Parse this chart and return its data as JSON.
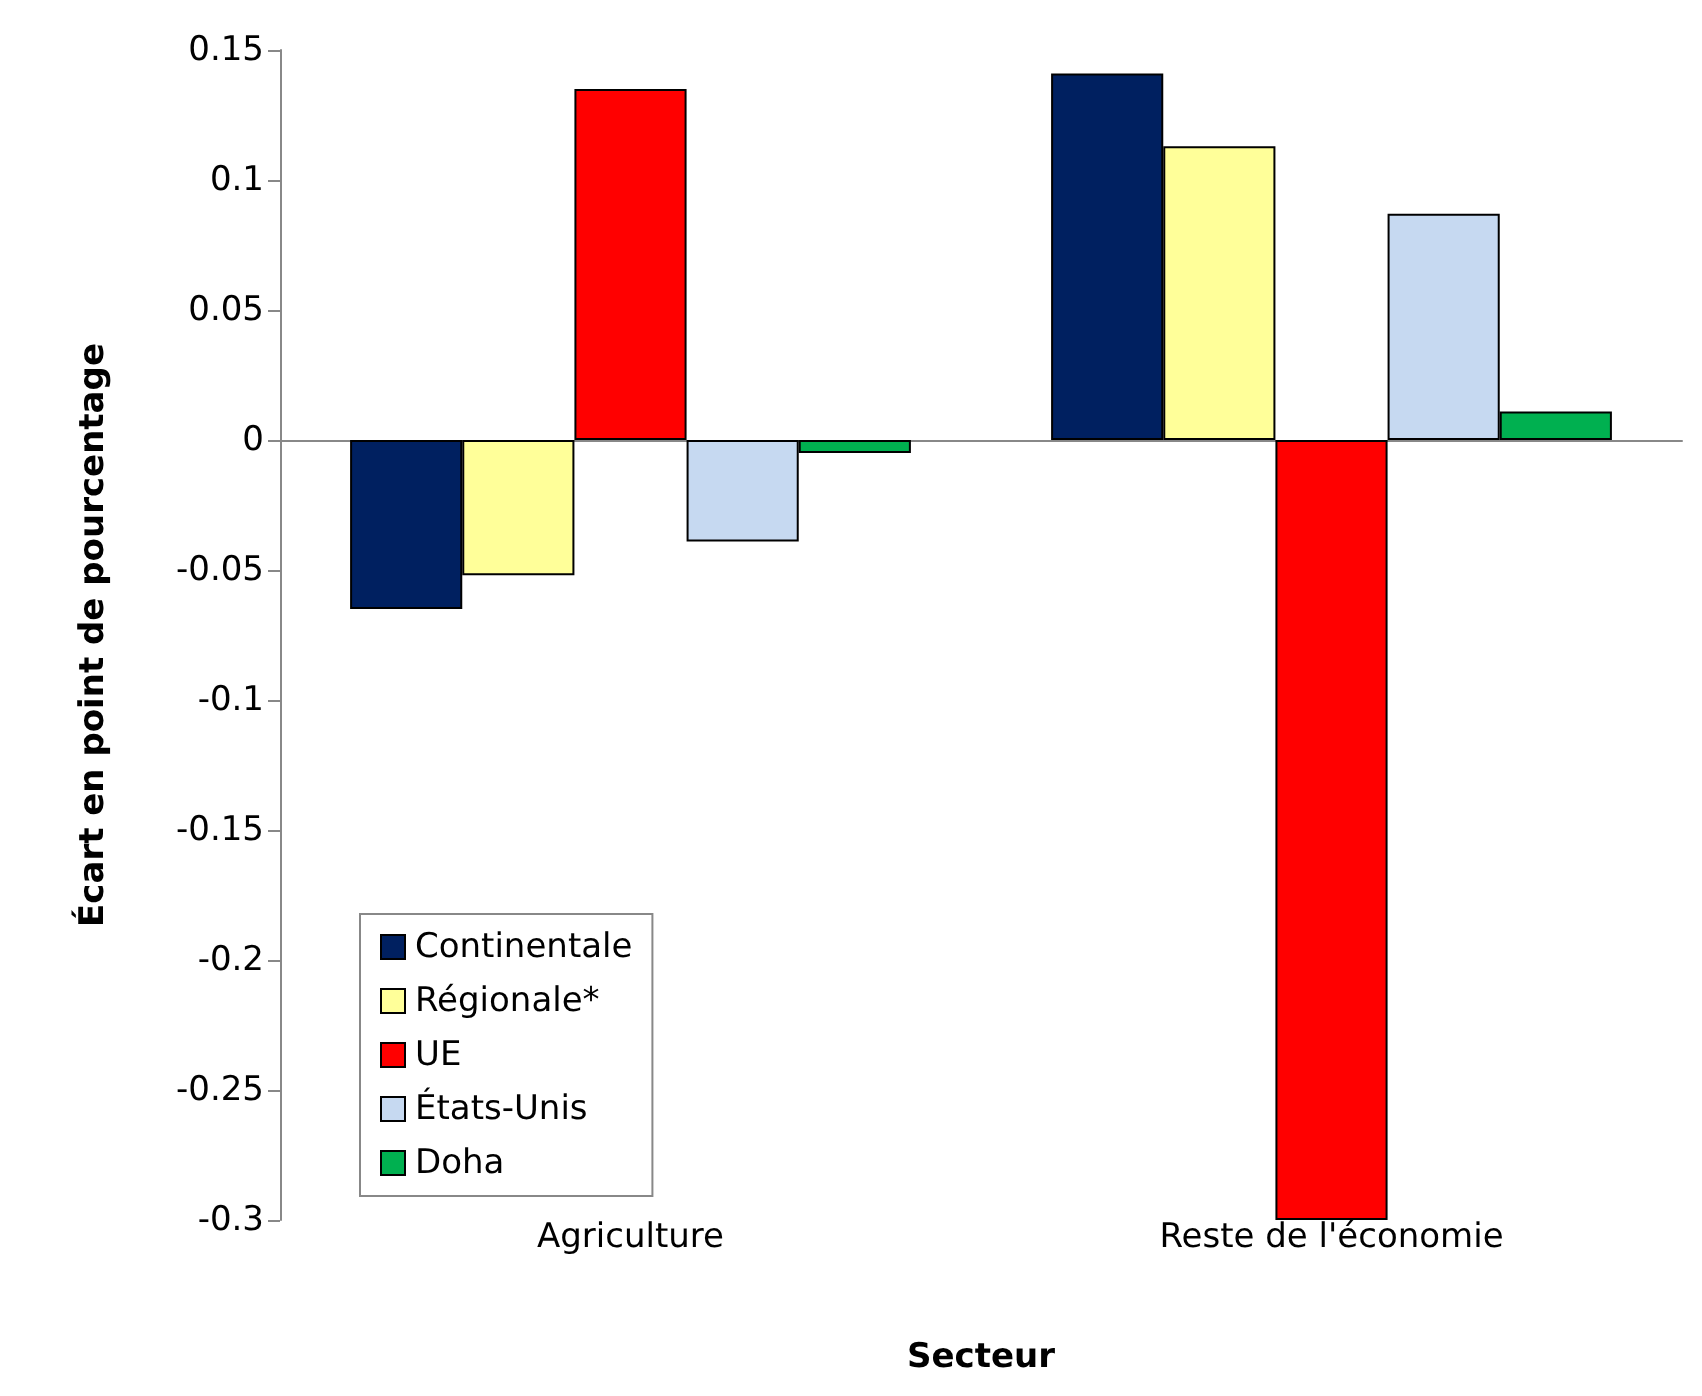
{
  "chart_data": {
    "type": "bar",
    "xlabel": "Secteur",
    "ylabel": "Écart en point de pourcentage",
    "categories": [
      "Agriculture",
      "Reste de l'économie"
    ],
    "series": [
      {
        "name": "Continentale",
        "color": "#002060",
        "values": [
          -0.065,
          0.141
        ]
      },
      {
        "name": "Régionale*",
        "color": "#ffff99",
        "values": [
          -0.052,
          0.113
        ]
      },
      {
        "name": "UE",
        "color": "#ff0000",
        "values": [
          0.135,
          -0.3
        ]
      },
      {
        "name": "États-Unis",
        "color": "#c6d9f1",
        "values": [
          -0.039,
          0.087
        ]
      },
      {
        "name": "Doha",
        "color": "#00b050",
        "values": [
          -0.005,
          0.011
        ]
      }
    ],
    "ylim": [
      -0.3,
      0.15
    ],
    "yticks": [
      -0.3,
      -0.25,
      -0.2,
      -0.15,
      -0.1,
      -0.05,
      0,
      0.05,
      0.1,
      0.15
    ],
    "legend": "bottom left"
  }
}
